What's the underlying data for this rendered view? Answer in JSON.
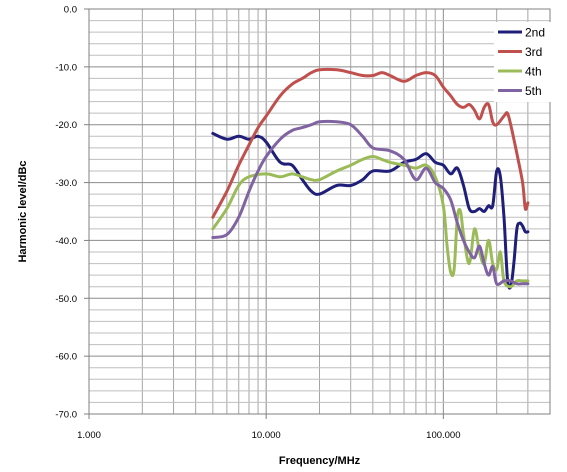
{
  "chart_data": {
    "type": "line",
    "xlabel": "Frequency/MHz",
    "ylabel": "Harmonic level/dBc",
    "xscale": "log",
    "xlim": [
      1,
      400
    ],
    "ylim": [
      -70,
      0
    ],
    "x_ticks": [
      1,
      10,
      100
    ],
    "x_tick_labels": [
      "1.000",
      "10.000",
      "100.000"
    ],
    "y_ticks": [
      0,
      -10,
      -20,
      -30,
      -40,
      -50,
      -60,
      -70
    ],
    "y_tick_labels": [
      "0.0",
      "-10.0",
      "-20.0",
      "-30.0",
      "-40.0",
      "-50.0",
      "-60.0",
      "-70.0"
    ],
    "grid": true,
    "legend_position": "top-right",
    "series": [
      {
        "name": "2nd",
        "color": "#1f1f7a",
        "points": [
          [
            5,
            -21.5
          ],
          [
            6,
            -22.5
          ],
          [
            7,
            -22.0
          ],
          [
            8,
            -22.5
          ],
          [
            9,
            -22.0
          ],
          [
            10,
            -23.0
          ],
          [
            12,
            -26.5
          ],
          [
            14,
            -27.0
          ],
          [
            16,
            -29.5
          ],
          [
            18,
            -31.5
          ],
          [
            20,
            -32.0
          ],
          [
            25,
            -30.5
          ],
          [
            30,
            -30.5
          ],
          [
            35,
            -29.5
          ],
          [
            40,
            -28.0
          ],
          [
            50,
            -28.0
          ],
          [
            60,
            -26.5
          ],
          [
            70,
            -26.0
          ],
          [
            80,
            -25.0
          ],
          [
            90,
            -26.5
          ],
          [
            100,
            -27.0
          ],
          [
            110,
            -28.5
          ],
          [
            120,
            -27.5
          ],
          [
            130,
            -30.5
          ],
          [
            140,
            -34.5
          ],
          [
            150,
            -35.0
          ],
          [
            160,
            -34.5
          ],
          [
            170,
            -35.0
          ],
          [
            180,
            -34.0
          ],
          [
            190,
            -34.0
          ],
          [
            200,
            -28.0
          ],
          [
            210,
            -29.0
          ],
          [
            220,
            -36.0
          ],
          [
            230,
            -46.5
          ],
          [
            240,
            -48.0
          ],
          [
            250,
            -44.0
          ],
          [
            260,
            -38.0
          ],
          [
            270,
            -37.0
          ],
          [
            280,
            -37.5
          ],
          [
            290,
            -38.5
          ],
          [
            300,
            -38.5
          ]
        ]
      },
      {
        "name": "3rd",
        "color": "#c0504d",
        "points": [
          [
            5,
            -36.0
          ],
          [
            6,
            -31.5
          ],
          [
            7,
            -27.0
          ],
          [
            8,
            -23.5
          ],
          [
            9,
            -20.5
          ],
          [
            10,
            -18.5
          ],
          [
            12,
            -15.0
          ],
          [
            14,
            -13.0
          ],
          [
            16,
            -12.0
          ],
          [
            18,
            -11.0
          ],
          [
            20,
            -10.5
          ],
          [
            25,
            -10.5
          ],
          [
            30,
            -11.0
          ],
          [
            35,
            -11.5
          ],
          [
            40,
            -11.5
          ],
          [
            45,
            -11.0
          ],
          [
            50,
            -11.5
          ],
          [
            60,
            -12.5
          ],
          [
            70,
            -11.5
          ],
          [
            80,
            -11.0
          ],
          [
            90,
            -11.5
          ],
          [
            100,
            -13.5
          ],
          [
            110,
            -15.0
          ],
          [
            120,
            -16.5
          ],
          [
            130,
            -17.0
          ],
          [
            140,
            -16.5
          ],
          [
            150,
            -17.5
          ],
          [
            160,
            -19.0
          ],
          [
            170,
            -17.0
          ],
          [
            180,
            -16.5
          ],
          [
            190,
            -19.5
          ],
          [
            200,
            -20.0
          ],
          [
            220,
            -18.5
          ],
          [
            230,
            -18.0
          ],
          [
            240,
            -20.0
          ],
          [
            260,
            -25.0
          ],
          [
            280,
            -30.0
          ],
          [
            290,
            -34.5
          ],
          [
            300,
            -33.5
          ]
        ]
      },
      {
        "name": "4th",
        "color": "#9bbb59",
        "points": [
          [
            5,
            -38.0
          ],
          [
            6,
            -34.5
          ],
          [
            7,
            -30.5
          ],
          [
            8,
            -29.0
          ],
          [
            10,
            -28.5
          ],
          [
            12,
            -29.0
          ],
          [
            14,
            -28.5
          ],
          [
            16,
            -29.0
          ],
          [
            18,
            -29.5
          ],
          [
            20,
            -29.5
          ],
          [
            25,
            -28.0
          ],
          [
            30,
            -27.0
          ],
          [
            35,
            -26.0
          ],
          [
            40,
            -25.5
          ],
          [
            45,
            -26.0
          ],
          [
            50,
            -26.5
          ],
          [
            60,
            -27.0
          ],
          [
            70,
            -27.5
          ],
          [
            80,
            -27.0
          ],
          [
            90,
            -29.0
          ],
          [
            100,
            -34.0
          ],
          [
            105,
            -41.0
          ],
          [
            110,
            -45.5
          ],
          [
            115,
            -45.0
          ],
          [
            120,
            -36.0
          ],
          [
            125,
            -35.0
          ],
          [
            130,
            -39.0
          ],
          [
            140,
            -44.0
          ],
          [
            150,
            -38.0
          ],
          [
            160,
            -42.0
          ],
          [
            170,
            -44.0
          ],
          [
            180,
            -40.0
          ],
          [
            190,
            -44.0
          ],
          [
            200,
            -45.0
          ],
          [
            210,
            -42.0
          ],
          [
            220,
            -47.0
          ],
          [
            240,
            -48.0
          ],
          [
            260,
            -47.0
          ],
          [
            280,
            -47.0
          ],
          [
            300,
            -47.0
          ]
        ]
      },
      {
        "name": "5th",
        "color": "#8064a2",
        "points": [
          [
            5,
            -39.5
          ],
          [
            6,
            -39.0
          ],
          [
            7,
            -36.0
          ],
          [
            8,
            -31.5
          ],
          [
            9,
            -28.0
          ],
          [
            10,
            -25.5
          ],
          [
            12,
            -22.5
          ],
          [
            14,
            -21.0
          ],
          [
            16,
            -20.5
          ],
          [
            18,
            -20.0
          ],
          [
            20,
            -19.5
          ],
          [
            25,
            -19.5
          ],
          [
            30,
            -20.0
          ],
          [
            35,
            -22.0
          ],
          [
            40,
            -24.0
          ],
          [
            50,
            -24.5
          ],
          [
            60,
            -26.0
          ],
          [
            70,
            -29.5
          ],
          [
            80,
            -27.5
          ],
          [
            90,
            -30.0
          ],
          [
            100,
            -31.0
          ],
          [
            110,
            -33.0
          ],
          [
            120,
            -37.0
          ],
          [
            130,
            -40.0
          ],
          [
            140,
            -42.0
          ],
          [
            150,
            -43.0
          ],
          [
            160,
            -41.0
          ],
          [
            170,
            -44.0
          ],
          [
            180,
            -46.0
          ],
          [
            190,
            -44.5
          ],
          [
            200,
            -47.5
          ],
          [
            220,
            -47.0
          ],
          [
            240,
            -47.0
          ],
          [
            260,
            -47.5
          ],
          [
            280,
            -47.5
          ],
          [
            300,
            -47.5
          ]
        ]
      }
    ]
  }
}
